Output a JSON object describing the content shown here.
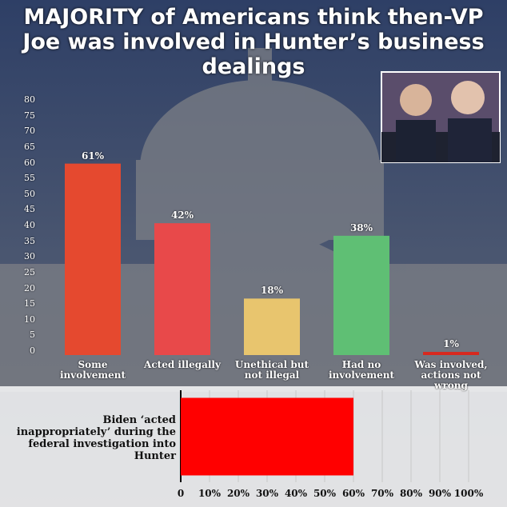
{
  "chart_data": [
    {
      "type": "bar",
      "title": "MAJORITY of Americans think then-VP Joe was involved in Hunter’s business dealings",
      "categories": [
        "Some involvement",
        "Acted illegally",
        "Unethical but not illegal",
        "Had no involvement",
        "Was involved, actions not wrong"
      ],
      "values": [
        61,
        42,
        18,
        38,
        1
      ],
      "value_labels": [
        "61%",
        "42%",
        "18%",
        "38%",
        "1%"
      ],
      "colors": [
        "#e5492f",
        "#e8494a",
        "#e8c56e",
        "#5fbf74",
        "#d8281e"
      ],
      "ylim": [
        0,
        80
      ],
      "yticks": [
        0,
        5,
        10,
        15,
        20,
        25,
        30,
        35,
        40,
        45,
        50,
        55,
        60,
        65,
        70,
        75,
        80
      ],
      "grid": false
    },
    {
      "type": "barh",
      "categories": [
        "Biden ‘acted inappropriately’ during the federal investigation into Hunter"
      ],
      "values": [
        60
      ],
      "color": "#ff0000",
      "xlim": [
        0,
        100
      ],
      "xticks": [
        0,
        {
          "value": 10,
          "label": "10%"
        },
        {
          "value": 20,
          "label": "20%"
        },
        {
          "value": 30,
          "label": "30%"
        },
        {
          "value": 40,
          "label": "40%"
        },
        {
          "value": 50,
          "label": "50%"
        },
        {
          "value": 60,
          "label": "60%"
        },
        {
          "value": 70,
          "label": "70%"
        },
        {
          "value": 80,
          "label": "80%"
        },
        {
          "value": 90,
          "label": "90%"
        },
        {
          "value": 100,
          "label": "100%"
        }
      ],
      "grid": true
    }
  ]
}
